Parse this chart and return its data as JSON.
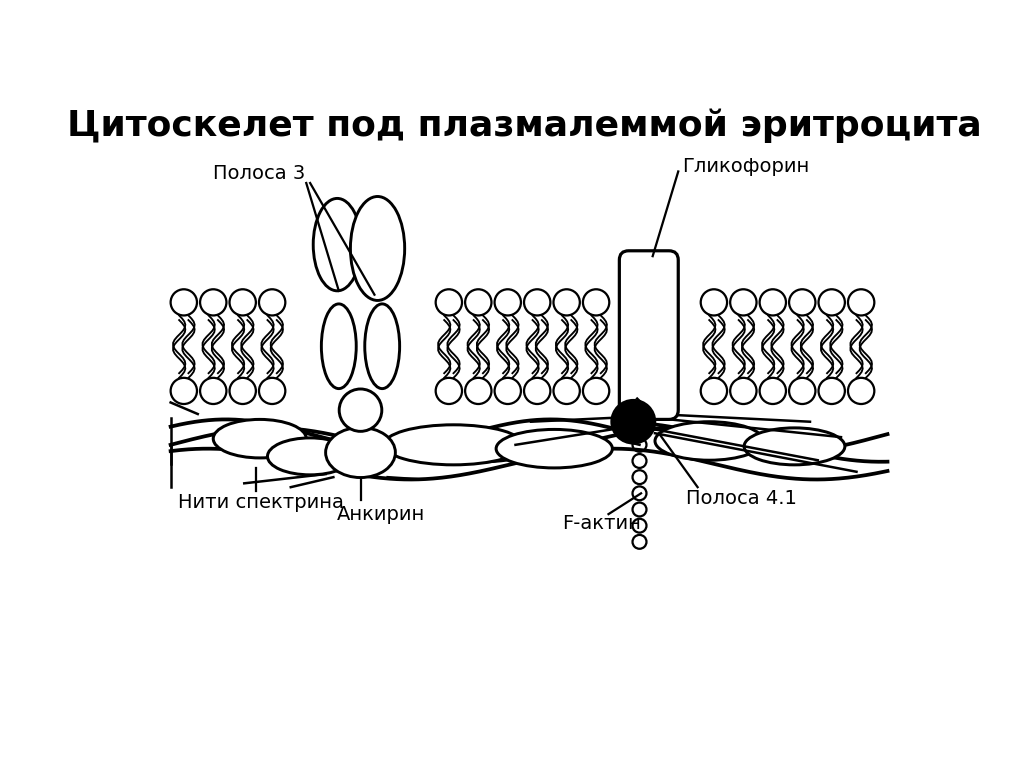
{
  "title": "Цитоскелет под плазмалеммой эритроцита",
  "title_fontsize": 26,
  "title_fontweight": "bold",
  "bg_color": "#ffffff",
  "line_color": "#000000",
  "labels": {
    "polosa3": "Полоса 3",
    "glycophorin": "Гликофорин",
    "spectrin": "Нити спектрина",
    "ankyrin": "Анкирин",
    "factin": "F-актин",
    "polosa41": "Полоса 4.1"
  },
  "label_fontsize": 14
}
